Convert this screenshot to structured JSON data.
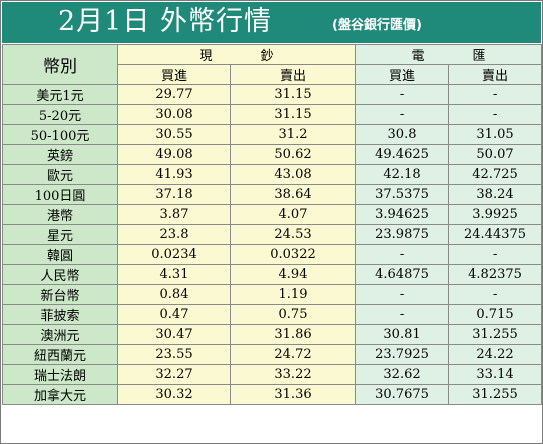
{
  "title": "2月1日 外幣行情",
  "subtitle": "(盤谷銀行匯價)",
  "headers": {
    "currency": "幣別",
    "cash": "現鈔",
    "remit": "電匯",
    "buy": "買進",
    "sell": "賣出"
  },
  "rows": [
    {
      "currency": "美元1元",
      "cash_buy": "29.77",
      "cash_sell": "31.15",
      "remit_buy": "-",
      "remit_sell": "-"
    },
    {
      "currency": "5-20元",
      "cash_buy": "30.08",
      "cash_sell": "31.15",
      "remit_buy": "-",
      "remit_sell": "-"
    },
    {
      "currency": "50-100元",
      "cash_buy": "30.55",
      "cash_sell": "31.2",
      "remit_buy": "30.8",
      "remit_sell": "31.05"
    },
    {
      "currency": "英鎊",
      "cash_buy": "49.08",
      "cash_sell": "50.62",
      "remit_buy": "49.4625",
      "remit_sell": "50.07"
    },
    {
      "currency": "歐元",
      "cash_buy": "41.93",
      "cash_sell": "43.08",
      "remit_buy": "42.18",
      "remit_sell": "42.725"
    },
    {
      "currency": "100日圓",
      "cash_buy": "37.18",
      "cash_sell": "38.64",
      "remit_buy": "37.5375",
      "remit_sell": "38.24"
    },
    {
      "currency": "港幣",
      "cash_buy": "3.87",
      "cash_sell": "4.07",
      "remit_buy": "3.94625",
      "remit_sell": "3.9925"
    },
    {
      "currency": "星元",
      "cash_buy": "23.8",
      "cash_sell": "24.53",
      "remit_buy": "23.9875",
      "remit_sell": "24.44375"
    },
    {
      "currency": "韓圓",
      "cash_buy": "0.0234",
      "cash_sell": "0.0322",
      "remit_buy": "-",
      "remit_sell": "-"
    },
    {
      "currency": "人民幣",
      "cash_buy": "4.31",
      "cash_sell": "4.94",
      "remit_buy": "4.64875",
      "remit_sell": "4.82375"
    },
    {
      "currency": "新台幣",
      "cash_buy": "0.84",
      "cash_sell": "1.19",
      "remit_buy": "-",
      "remit_sell": "-"
    },
    {
      "currency": "菲披索",
      "cash_buy": "0.47",
      "cash_sell": "0.75",
      "remit_buy": "-",
      "remit_sell": "0.715"
    },
    {
      "currency": "澳洲元",
      "cash_buy": "30.47",
      "cash_sell": "31.86",
      "remit_buy": "30.81",
      "remit_sell": "31.255"
    },
    {
      "currency": "紐西蘭元",
      "cash_buy": "23.55",
      "cash_sell": "24.72",
      "remit_buy": "23.7925",
      "remit_sell": "24.22"
    },
    {
      "currency": "瑞士法朗",
      "cash_buy": "32.27",
      "cash_sell": "33.22",
      "remit_buy": "32.62",
      "remit_sell": "33.14"
    },
    {
      "currency": "加拿大元",
      "cash_buy": "30.32",
      "cash_sell": "31.36",
      "remit_buy": "30.7675",
      "remit_sell": "31.255"
    }
  ],
  "colors": {
    "title_bg": "#1f8a7a",
    "header_green": "#cde8c9",
    "cash_yellow": "#fbf9d2",
    "remit_green": "#dff0e4"
  }
}
